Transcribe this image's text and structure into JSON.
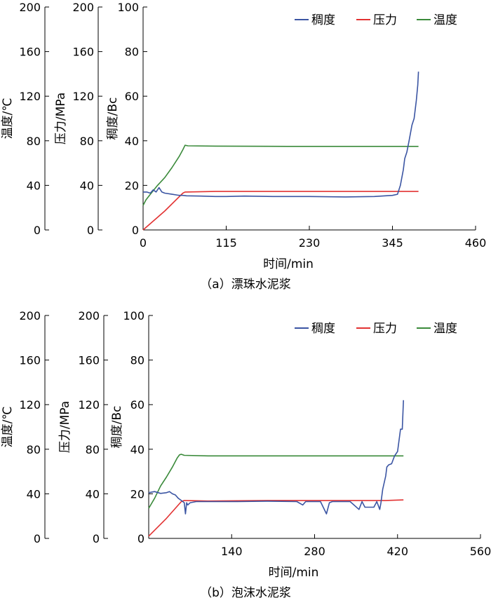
{
  "chart_data": [
    {
      "type": "line",
      "caption": "（a）漂珠水泥浆",
      "xlabel": "时间/min",
      "xticks": [
        0,
        115,
        230,
        345,
        460
      ],
      "xlim": [
        0,
        460
      ],
      "axes": [
        {
          "label": "温度/℃",
          "ticks": [
            0,
            40,
            80,
            120,
            160,
            200
          ],
          "ylim": [
            0,
            200
          ]
        },
        {
          "label": "压力/MPa",
          "ticks": [
            0,
            40,
            80,
            120,
            160,
            200
          ],
          "ylim": [
            0,
            200
          ]
        },
        {
          "label": "稠度/Bc",
          "ticks": [
            0,
            20,
            40,
            60,
            80,
            100
          ],
          "ylim": [
            0,
            100
          ]
        }
      ],
      "legend_position": "top-right",
      "series": [
        {
          "name": "稠度",
          "color": "#3b55a3",
          "axis": 2,
          "x": [
            0,
            5,
            10,
            14,
            18,
            22,
            26,
            30,
            40,
            50,
            55,
            60,
            80,
            100,
            115,
            140,
            180,
            230,
            280,
            320,
            345,
            352,
            356,
            360,
            362,
            365,
            368,
            372,
            375,
            378,
            380,
            381
          ],
          "y": [
            17,
            17,
            16.5,
            18,
            17,
            19,
            17,
            16.5,
            16,
            15.5,
            15.5,
            15.3,
            15.2,
            15,
            15,
            15.2,
            15,
            15,
            14.8,
            15,
            15.5,
            16,
            20,
            27,
            32,
            35,
            40,
            47,
            50,
            58,
            65,
            71
          ]
        },
        {
          "name": "压力",
          "color": "#e23232",
          "axis": 1,
          "x": [
            0,
            30,
            55,
            58,
            100,
            200,
            300,
            381
          ],
          "y": [
            0,
            17,
            33,
            34,
            34.5,
            34.5,
            34.5,
            34.5
          ]
        },
        {
          "name": "温度",
          "color": "#3a8a3a",
          "axis": 0,
          "x": [
            0,
            4,
            10,
            20,
            30,
            40,
            50,
            55,
            58,
            62,
            100,
            200,
            300,
            360,
            381
          ],
          "y": [
            22,
            27,
            32,
            40,
            47,
            56,
            66,
            72,
            76,
            75.5,
            75.2,
            75,
            75,
            75,
            75
          ]
        }
      ]
    },
    {
      "type": "line",
      "caption": "（b）泡沫水泥浆",
      "xlabel": "时间/min",
      "xticks": [
        140,
        280,
        420,
        560
      ],
      "xlim": [
        0,
        560
      ],
      "axes": [
        {
          "label": "温度/℃",
          "ticks": [
            0,
            40,
            80,
            120,
            160,
            200
          ],
          "ylim": [
            0,
            200
          ]
        },
        {
          "label": "压力/MPa",
          "ticks": [
            0,
            40,
            80,
            120,
            160,
            200
          ],
          "ylim": [
            0,
            200
          ]
        },
        {
          "label": "稠度/Bc",
          "ticks": [
            0,
            20,
            40,
            60,
            80,
            100
          ],
          "ylim": [
            0,
            100
          ]
        }
      ],
      "legend_position": "top-right",
      "series": [
        {
          "name": "稠度",
          "color": "#3b55a3",
          "axis": 2,
          "x": [
            0,
            10,
            20,
            30,
            35,
            40,
            45,
            50,
            55,
            60,
            62,
            64,
            66,
            70,
            80,
            100,
            150,
            200,
            250,
            260,
            265,
            270,
            290,
            300,
            305,
            310,
            340,
            355,
            360,
            365,
            380,
            385,
            390,
            392,
            395,
            400,
            402,
            405,
            410,
            415,
            420,
            425,
            428,
            430
          ],
          "y": [
            20.5,
            21,
            20.2,
            20.5,
            21,
            20,
            19.5,
            18,
            17,
            16,
            11,
            16,
            15,
            16,
            16.5,
            16.5,
            16.5,
            16.7,
            16.5,
            15,
            16.5,
            16.5,
            16.5,
            11,
            16,
            16.5,
            16.5,
            13,
            16.5,
            14,
            14,
            16.5,
            13,
            16,
            22,
            28,
            32,
            33,
            33.5,
            37,
            39,
            49,
            49,
            62
          ]
        },
        {
          "name": "压力",
          "color": "#e23232",
          "axis": 1,
          "x": [
            0,
            30,
            55,
            60,
            100,
            200,
            300,
            400,
            430
          ],
          "y": [
            2,
            18,
            33,
            34,
            33.5,
            34,
            34,
            34,
            34.5
          ]
        },
        {
          "name": "温度",
          "color": "#3a8a3a",
          "axis": 0,
          "x": [
            0,
            10,
            20,
            30,
            40,
            48,
            52,
            55,
            60,
            100,
            200,
            300,
            400,
            430
          ],
          "y": [
            27,
            36,
            47,
            55,
            64,
            72,
            75,
            75.5,
            74.5,
            74,
            74,
            74,
            74,
            74
          ]
        }
      ]
    }
  ]
}
